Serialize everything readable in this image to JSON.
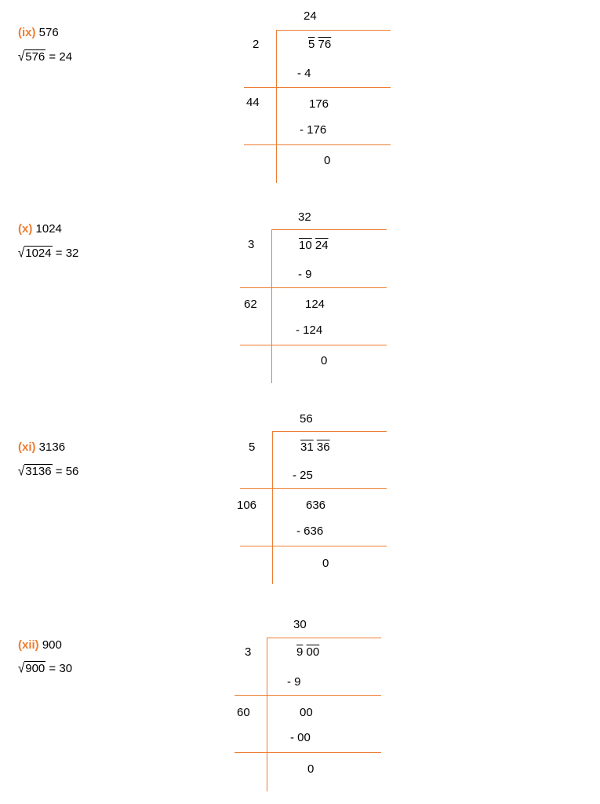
{
  "problems": [
    {
      "roman": "(ix)",
      "number": "576",
      "radicand": "576",
      "equals": " = 24",
      "quotient": "24",
      "divisors": [
        "2",
        "44"
      ],
      "dividend_groups": [
        "5",
        "76"
      ],
      "steps": [
        "- 4",
        "176",
        "- 176",
        "0"
      ]
    },
    {
      "roman": "(x)",
      "number": "1024",
      "radicand": "1024",
      "equals": " = 32",
      "quotient": "32",
      "divisors": [
        "3",
        "62"
      ],
      "dividend_groups": [
        "10",
        "24"
      ],
      "steps": [
        "- 9",
        "124",
        "- 124",
        "0"
      ]
    },
    {
      "roman": "(xi)",
      "number": "3136",
      "radicand": "3136",
      "equals": " = 56",
      "quotient": "56",
      "divisors": [
        "5",
        "106"
      ],
      "dividend_groups": [
        "31",
        "36"
      ],
      "steps": [
        "- 25",
        "636",
        "- 636",
        "0"
      ]
    },
    {
      "roman": "(xii)",
      "number": "900",
      "radicand": "900",
      "equals": " = 30",
      "quotient": "30",
      "divisors": [
        "3",
        "60"
      ],
      "dividend_groups": [
        "9",
        "00"
      ],
      "steps": [
        "- 9",
        "00",
        "- 00",
        "0"
      ]
    }
  ],
  "colors": {
    "accent": "#ED7D31",
    "text": "#000000"
  }
}
